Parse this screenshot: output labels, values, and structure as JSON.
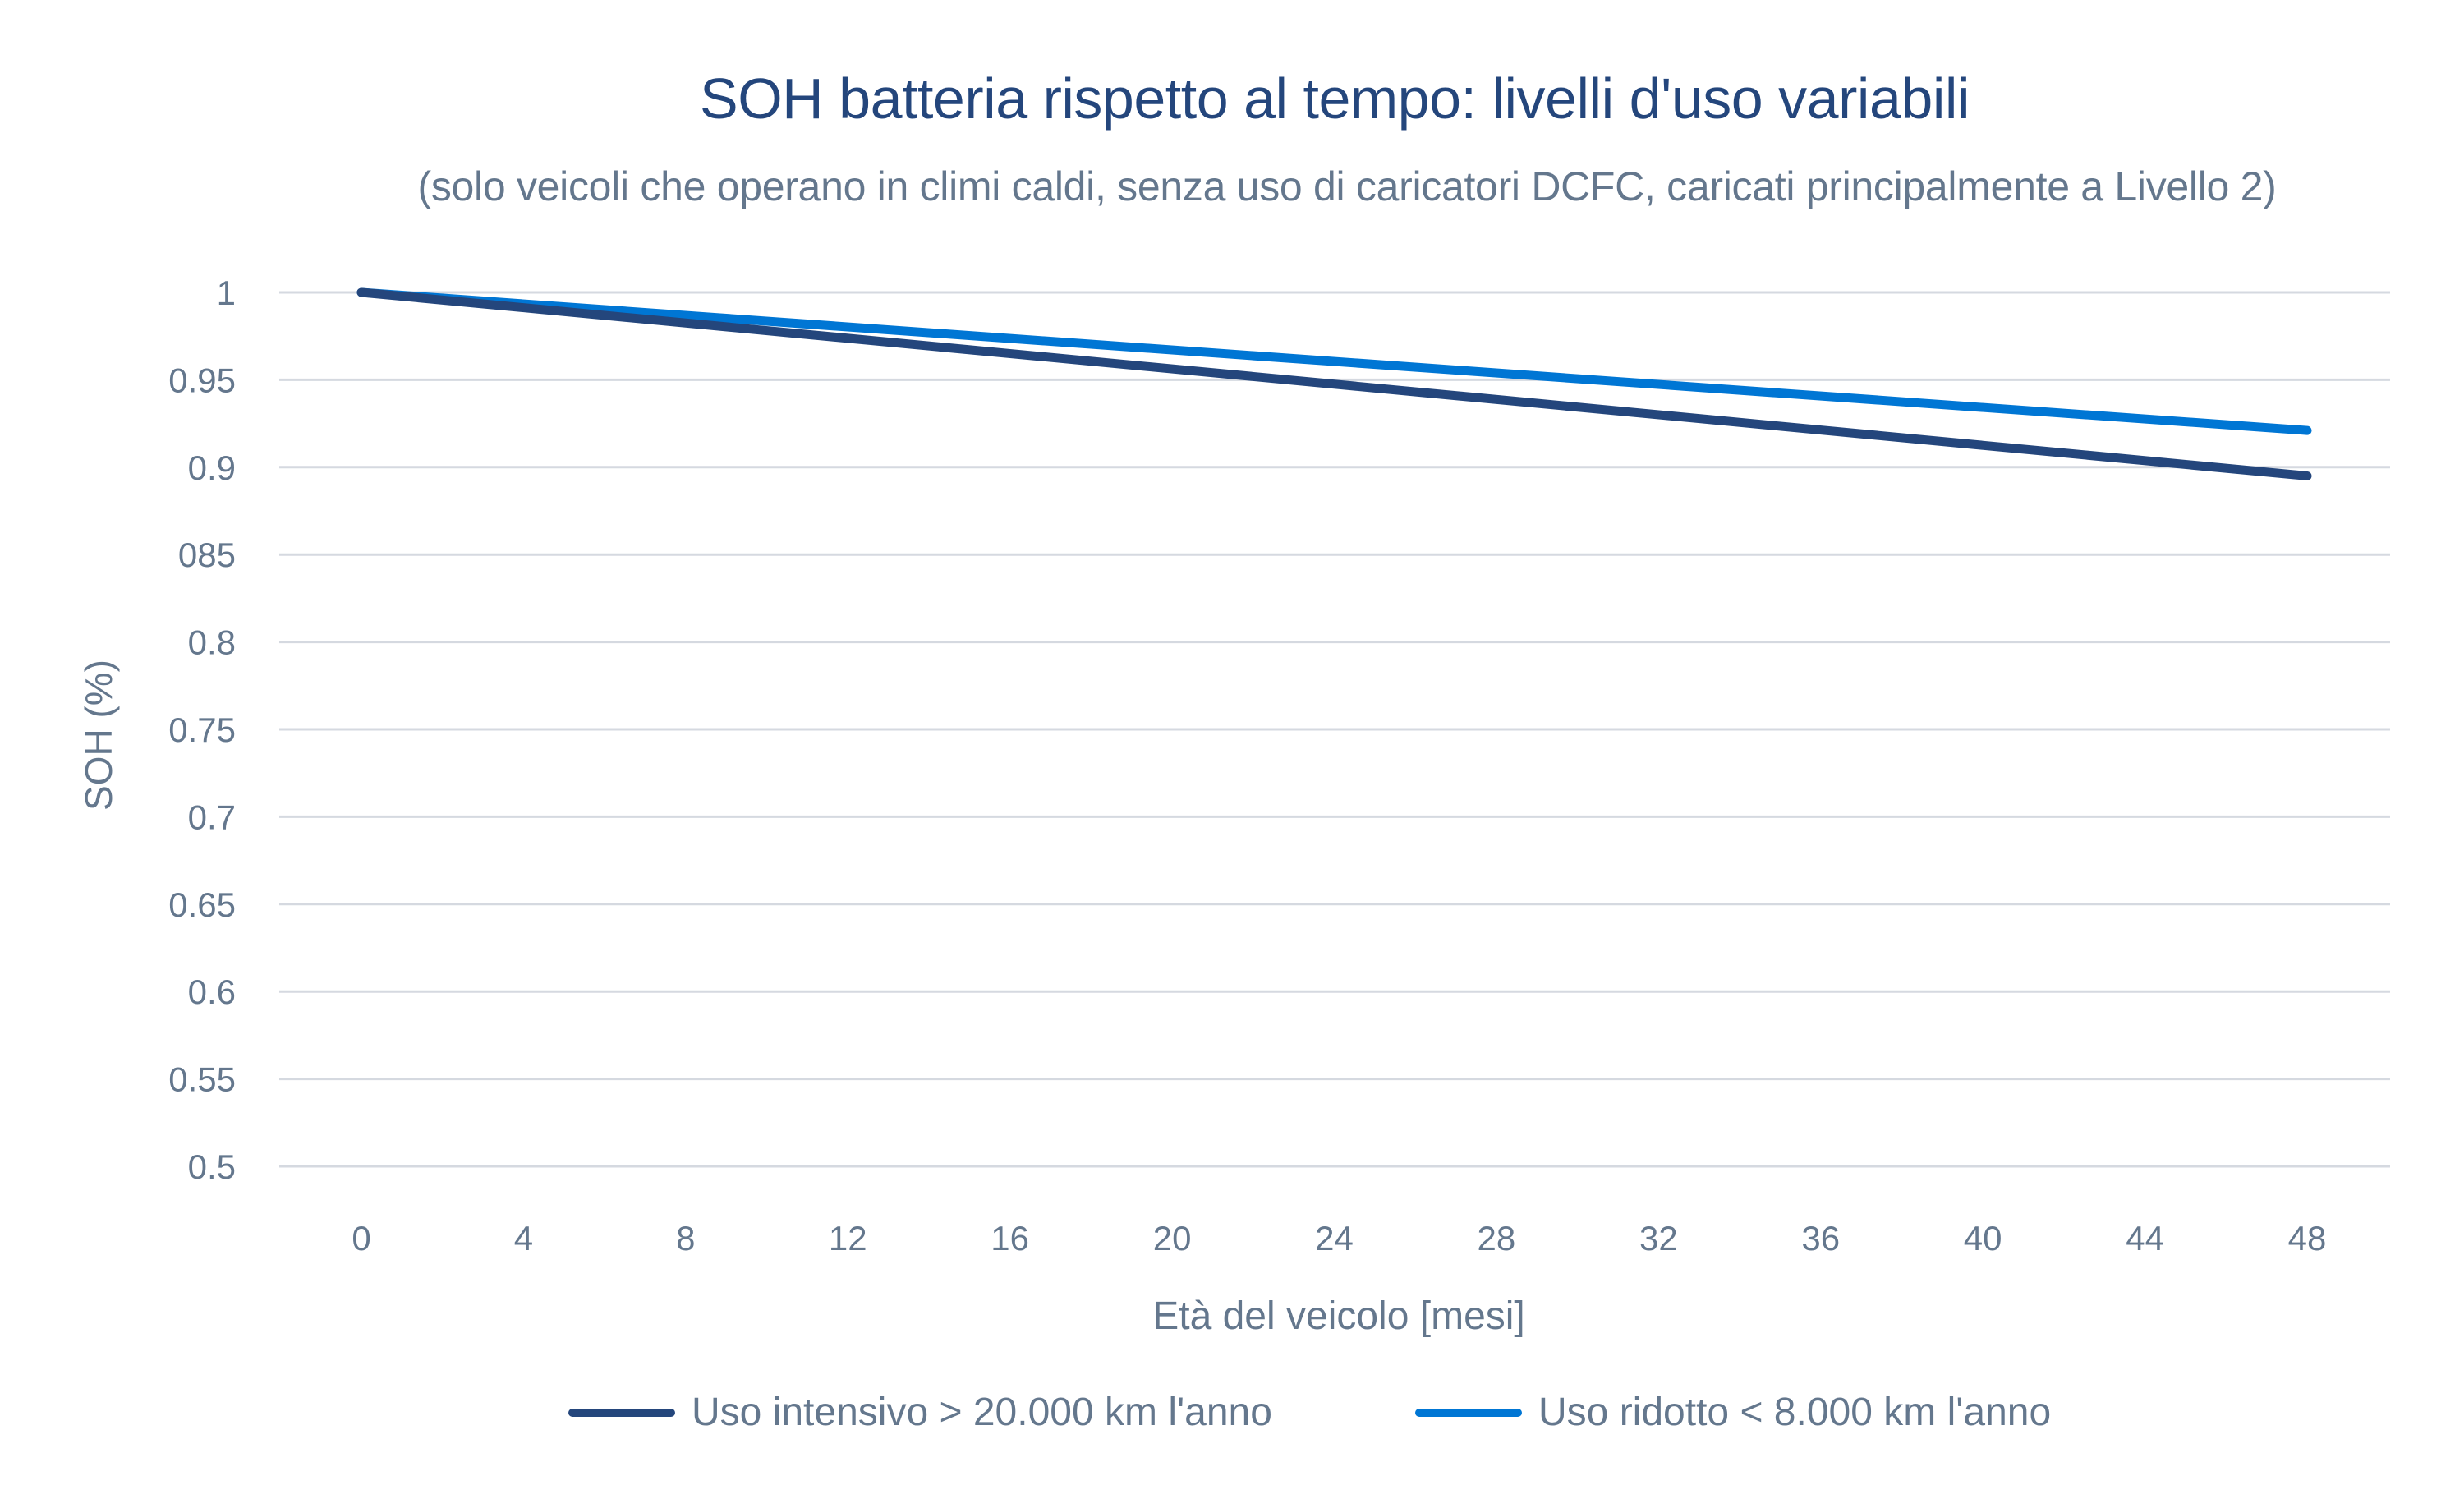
{
  "header": {
    "title": "SOH batteria rispetto al tempo: livelli d'uso variabili",
    "subtitle": "(solo veicoli che operano in climi caldi, senza uso di caricatori DCFC, caricati principalmente a Livello 2)"
  },
  "axes": {
    "ylabel": "SOH (%)",
    "xlabel": "Età del veicolo [mesi]",
    "y_ticks": [
      "1",
      "0.95",
      "0.9",
      "085",
      "0.8",
      "0.75",
      "0.7",
      "0.65",
      "0.6",
      "0.55",
      "0.5"
    ],
    "x_ticks": [
      "0",
      "4",
      "8",
      "12",
      "16",
      "20",
      "24",
      "28",
      "32",
      "36",
      "40",
      "44",
      "48"
    ]
  },
  "legend": [
    {
      "label": "Uso intensivo > 20.000 km l'anno",
      "color": "#24467C"
    },
    {
      "label": "Uso ridotto < 8.000 km l'anno",
      "color": "#0076D4"
    }
  ],
  "colors": {
    "title": "#24467C",
    "text": "#64778D",
    "grid": "#D5D9E0",
    "series_intensive": "#24467C",
    "series_reduced": "#0076D4"
  },
  "chart_data": {
    "type": "line",
    "title": "SOH batteria rispetto al tempo: livelli d'uso variabili",
    "subtitle": "(solo veicoli che operano in climi caldi, senza uso di caricatori DCFC, caricati principalmente a Livello 2)",
    "xlabel": "Età del veicolo [mesi]",
    "ylabel": "SOH (%)",
    "x": [
      0,
      48
    ],
    "x_ticks": [
      0,
      4,
      8,
      12,
      16,
      20,
      24,
      28,
      32,
      36,
      40,
      44,
      48
    ],
    "y_tick_labels": [
      "1",
      "0.95",
      "0.9",
      "085",
      "0.8",
      "0.75",
      "0.7",
      "0.65",
      "0.6",
      "0.55",
      "0.5"
    ],
    "ylim": [
      0.5,
      1.0
    ],
    "xlim": [
      0,
      48
    ],
    "grid": "horizontal",
    "legend_position": "bottom",
    "series": [
      {
        "name": "Uso intensivo > 20.000 km l'anno",
        "color": "#24467C",
        "x": [
          0,
          48
        ],
        "values": [
          1.0,
          0.895
        ]
      },
      {
        "name": "Uso ridotto < 8.000 km l'anno",
        "color": "#0076D4",
        "x": [
          0,
          48
        ],
        "values": [
          1.0,
          0.921
        ]
      }
    ]
  }
}
